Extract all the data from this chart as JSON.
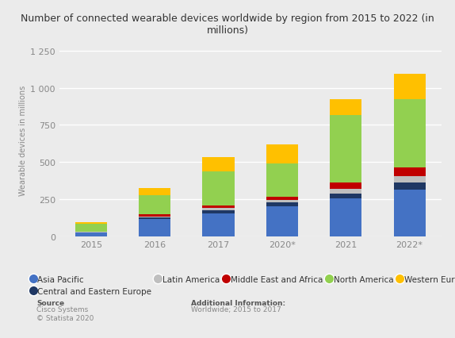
{
  "categories": [
    "2015",
    "2016",
    "2017",
    "2020*",
    "2021",
    "2022*"
  ],
  "series_order": [
    "Asia Pacific",
    "Central and Eastern Europe",
    "Latin America",
    "Middle East and Africa",
    "North America",
    "Western Europe"
  ],
  "series": {
    "Asia Pacific": [
      25,
      115,
      155,
      205,
      255,
      315
    ],
    "Central and Eastern Europe": [
      3,
      12,
      20,
      22,
      35,
      50
    ],
    "Latin America": [
      3,
      8,
      18,
      20,
      30,
      42
    ],
    "Middle East and Africa": [
      3,
      12,
      15,
      18,
      42,
      58
    ],
    "North America": [
      52,
      130,
      230,
      225,
      455,
      460
    ],
    "Western Europe": [
      12,
      48,
      95,
      130,
      108,
      170
    ]
  },
  "colors": {
    "Asia Pacific": "#4472c4",
    "Central and Eastern Europe": "#1f3864",
    "Latin America": "#bfbfbf",
    "Middle East and Africa": "#c00000",
    "North America": "#92d050",
    "Western Europe": "#ffc000"
  },
  "title": "Number of connected wearable devices worldwide by region from 2015 to 2022 (in\nmillions)",
  "ylabel": "Wearable devices in millions",
  "ylim": [
    0,
    1300
  ],
  "yticks": [
    0,
    250,
    500,
    750,
    1000,
    1250
  ],
  "ytick_labels": [
    "0",
    "250",
    "500",
    "750",
    "1 000",
    "1 250"
  ],
  "bg_color": "#ebebeb",
  "source_bold": "Source",
  "source_body": "Cisco Systems\n© Statista 2020",
  "additional_bold": "Additional Information:",
  "additional_body": "Worldwide; 2015 to 2017",
  "grid_color": "#ffffff",
  "bar_width": 0.5
}
